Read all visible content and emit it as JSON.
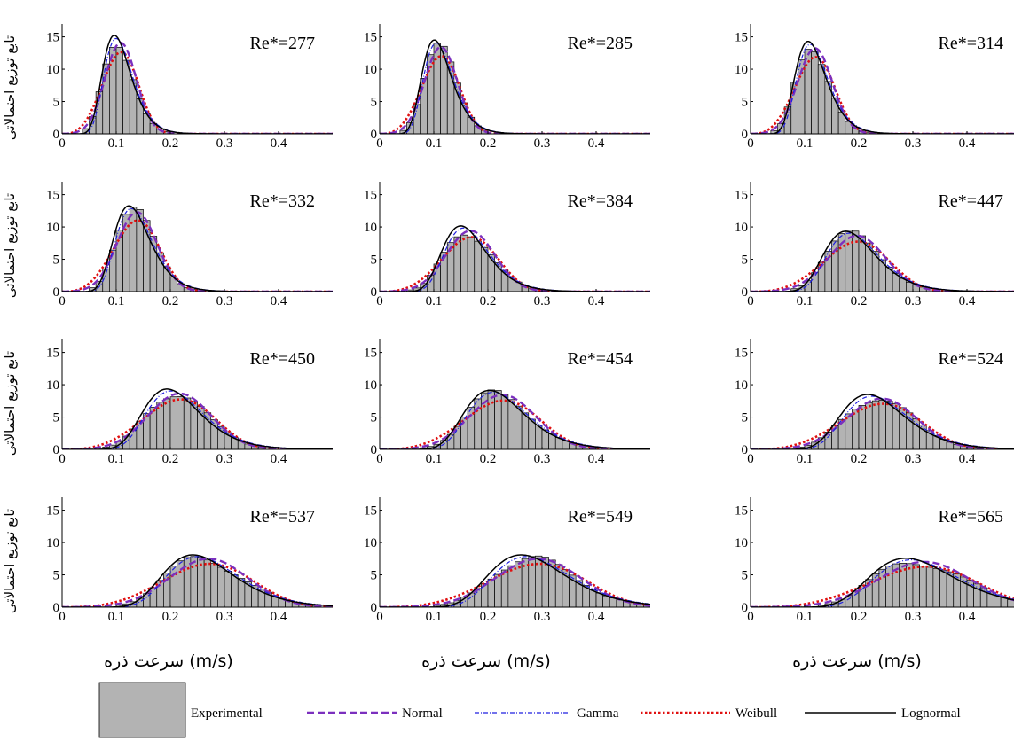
{
  "chart_data": {
    "type": "histogram-with-fitted-distributions",
    "layout": {
      "rows": 4,
      "cols": 3
    },
    "xlim": [
      0,
      0.5
    ],
    "ylim": [
      0,
      17
    ],
    "x_ticks": [
      0,
      0.1,
      0.2,
      0.3,
      0.4
    ],
    "x_tick_labels": [
      "0",
      "0.1",
      "0.2",
      "0.3",
      "0.4"
    ],
    "y_ticks": [
      0,
      5,
      10,
      15
    ],
    "y_tick_labels": [
      "0",
      "5",
      "10",
      "15"
    ],
    "bin_width": 0.0125,
    "ylabel": "تابع توزیع احتمالاتی",
    "xlabel": "سرعت ذره (m/s)",
    "legend_entries": [
      "Experimental",
      "Normal",
      "Gamma",
      "Weibull",
      "Lognormal"
    ],
    "series_colors": {
      "Experimental": "#b3b3b3",
      "Normal": "#7b2fbe",
      "Gamma": "#1f1fe0",
      "Weibull": "#e01010",
      "Lognormal": "#000000"
    },
    "panels": [
      {
        "label": "Re*=277",
        "mean": 0.107,
        "peak": 14.7
      },
      {
        "label": "Re*=285",
        "mean": 0.112,
        "peak": 14.0
      },
      {
        "label": "Re*=314",
        "mean": 0.118,
        "peak": 13.8
      },
      {
        "label": "Re*=332",
        "mean": 0.137,
        "peak": 12.8
      },
      {
        "label": "Re*=384",
        "mean": 0.166,
        "peak": 9.8
      },
      {
        "label": "Re*=447",
        "mean": 0.195,
        "peak": 9.0
      },
      {
        "label": "Re*=450",
        "mean": 0.215,
        "peak": 9.0
      },
      {
        "label": "Re*=454",
        "mean": 0.225,
        "peak": 8.8
      },
      {
        "label": "Re*=524",
        "mean": 0.24,
        "peak": 8.2
      },
      {
        "label": "Re*=537",
        "mean": 0.268,
        "peak": 7.8
      },
      {
        "label": "Re*=549",
        "mean": 0.29,
        "peak": 7.8
      },
      {
        "label": "Re*=565",
        "mean": 0.318,
        "peak": 7.3
      }
    ]
  }
}
